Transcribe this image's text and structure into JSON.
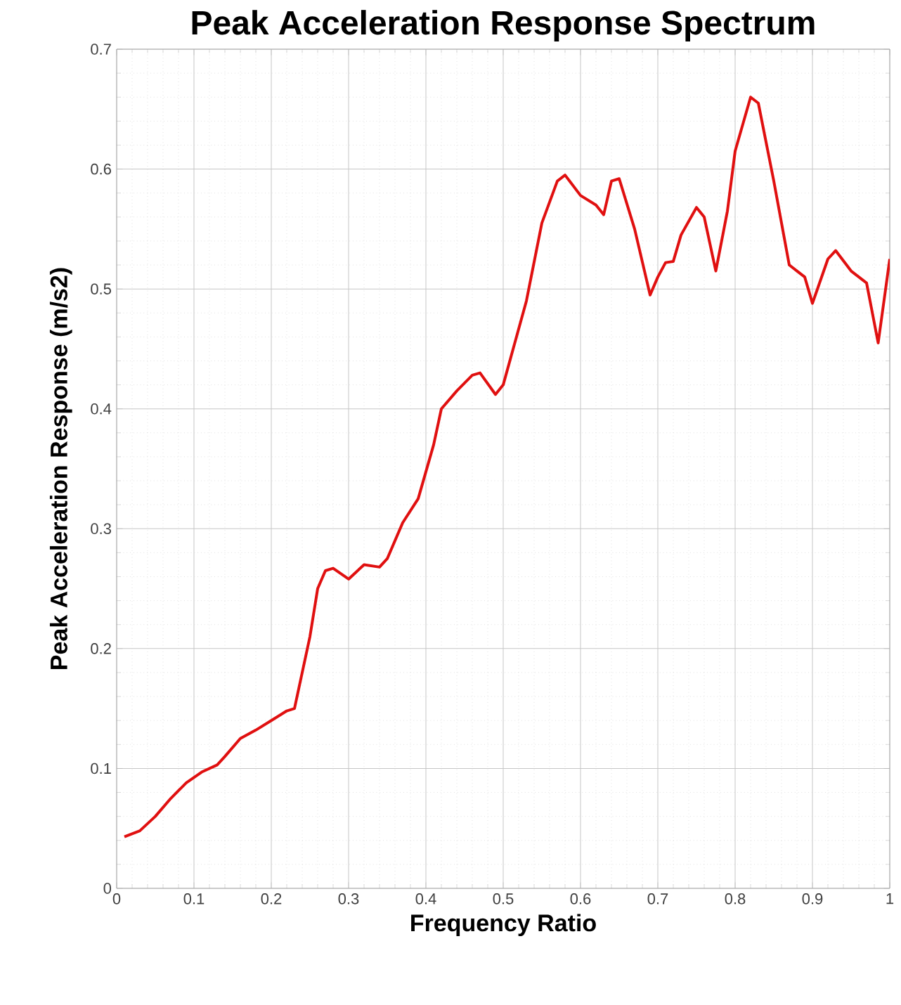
{
  "chart_data": {
    "type": "line",
    "title": "Peak Acceleration Response Spectrum",
    "xlabel": "Frequency Ratio",
    "ylabel": "Peak Acceleration Response (m/s2)",
    "xlim": [
      0,
      1
    ],
    "ylim": [
      0,
      0.7
    ],
    "xticks": [
      {
        "value": 0,
        "label": "0"
      },
      {
        "value": 0.1,
        "label": "0.1"
      },
      {
        "value": 0.2,
        "label": "0.2"
      },
      {
        "value": 0.3,
        "label": "0.3"
      },
      {
        "value": 0.4,
        "label": "0.4"
      },
      {
        "value": 0.5,
        "label": "0.5"
      },
      {
        "value": 0.6,
        "label": "0.6"
      },
      {
        "value": 0.7,
        "label": "0.7"
      },
      {
        "value": 0.8,
        "label": "0.8"
      },
      {
        "value": 0.9,
        "label": "0.9"
      },
      {
        "value": 1,
        "label": "1"
      }
    ],
    "yticks": [
      {
        "value": 0,
        "label": "0"
      },
      {
        "value": 0.1,
        "label": "0.1"
      },
      {
        "value": 0.2,
        "label": "0.2"
      },
      {
        "value": 0.3,
        "label": "0.3"
      },
      {
        "value": 0.4,
        "label": "0.4"
      },
      {
        "value": 0.5,
        "label": "0.5"
      },
      {
        "value": 0.6,
        "label": "0.6"
      },
      {
        "value": 0.7,
        "label": "0.7"
      }
    ],
    "grid": true,
    "marker": "none",
    "line_style": "solid",
    "x": [
      0.01,
      0.03,
      0.05,
      0.07,
      0.09,
      0.11,
      0.13,
      0.14,
      0.16,
      0.18,
      0.2,
      0.22,
      0.23,
      0.25,
      0.26,
      0.27,
      0.28,
      0.3,
      0.32,
      0.34,
      0.35,
      0.37,
      0.39,
      0.41,
      0.42,
      0.44,
      0.46,
      0.47,
      0.49,
      0.5,
      0.53,
      0.55,
      0.57,
      0.58,
      0.6,
      0.62,
      0.63,
      0.64,
      0.65,
      0.67,
      0.69,
      0.7,
      0.71,
      0.72,
      0.73,
      0.75,
      0.76,
      0.775,
      0.79,
      0.8,
      0.82,
      0.83,
      0.85,
      0.87,
      0.88,
      0.89,
      0.9,
      0.92,
      0.93,
      0.95,
      0.96,
      0.97,
      0.985,
      1.0
    ],
    "series": [
      {
        "color": "#e01010",
        "values": [
          0.043,
          0.048,
          0.06,
          0.075,
          0.088,
          0.097,
          0.103,
          0.11,
          0.125,
          0.132,
          0.14,
          0.148,
          0.15,
          0.21,
          0.25,
          0.265,
          0.267,
          0.258,
          0.27,
          0.268,
          0.275,
          0.305,
          0.325,
          0.37,
          0.4,
          0.415,
          0.428,
          0.43,
          0.412,
          0.42,
          0.49,
          0.555,
          0.59,
          0.595,
          0.578,
          0.57,
          0.562,
          0.59,
          0.592,
          0.55,
          0.495,
          0.51,
          0.522,
          0.523,
          0.545,
          0.568,
          0.56,
          0.515,
          0.565,
          0.615,
          0.66,
          0.655,
          0.59,
          0.52,
          0.515,
          0.51,
          0.488,
          0.525,
          0.532,
          0.515,
          0.51,
          0.505,
          0.455,
          0.525
        ]
      }
    ]
  }
}
